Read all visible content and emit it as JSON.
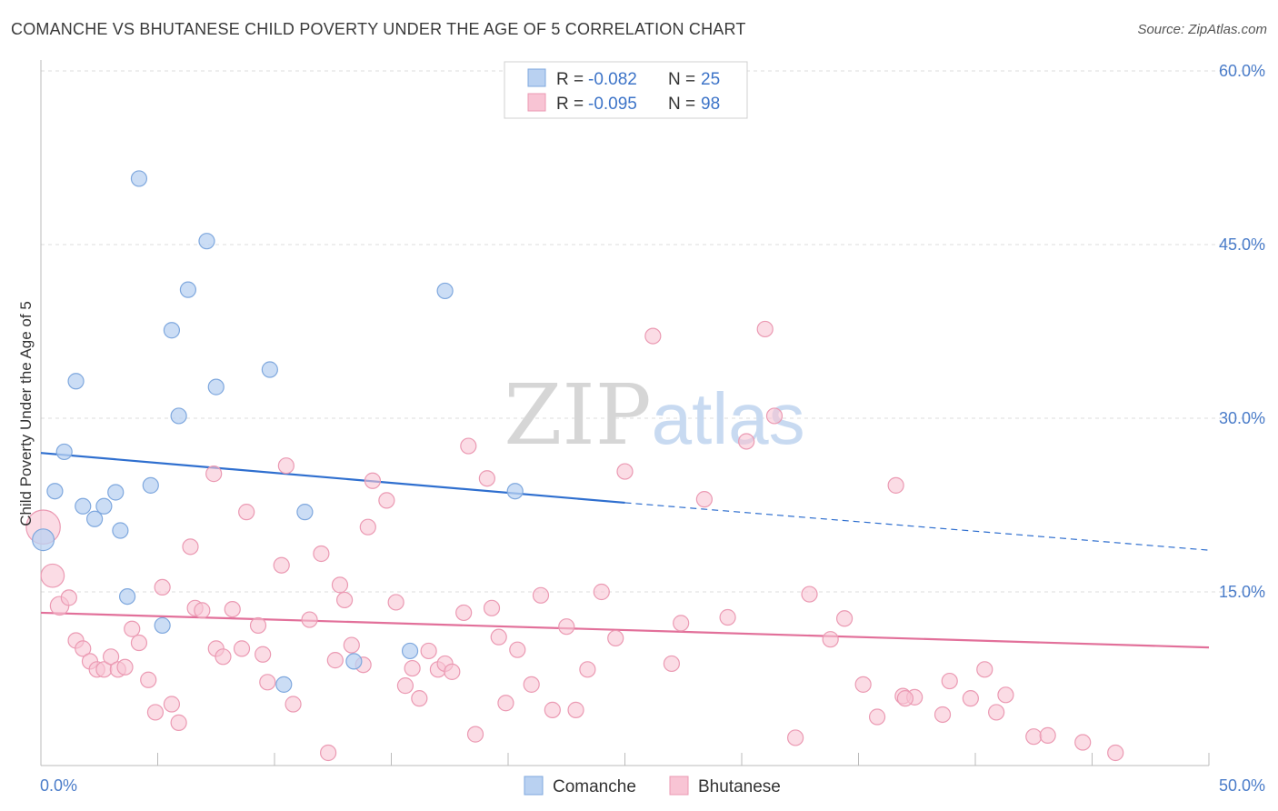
{
  "title": "COMANCHE VS BHUTANESE CHILD POVERTY UNDER THE AGE OF 5 CORRELATION CHART",
  "source": "Source: ZipAtlas.com",
  "watermark": "ZIPatlas",
  "legend": {
    "r_label": "R =",
    "n_label": "N =",
    "items": [
      {
        "name": "Comanche",
        "r": "-0.082",
        "n": "25"
      },
      {
        "name": "Bhutanese",
        "r": "-0.095",
        "n": "98"
      }
    ]
  },
  "colors": {
    "comanche_fill": "#b9d1f1",
    "comanche_stroke": "#7fa8de",
    "comanche_line": "#2f6fcf",
    "bhutanese_fill": "#f8c4d4",
    "bhutanese_stroke": "#eb9ab3",
    "bhutanese_line": "#e2709a",
    "tick_text": "#4a7cc9",
    "grid": "#dddddd"
  },
  "chart_data": {
    "type": "scatter",
    "title": "COMANCHE VS BHUTANESE CHILD POVERTY UNDER THE AGE OF 5 CORRELATION CHART",
    "xlabel": "",
    "ylabel": "Child Poverty Under the Age of 5",
    "xlim": [
      0,
      50
    ],
    "ylim": [
      0,
      60
    ],
    "x_tick_labels": [
      "0.0%",
      "50.0%"
    ],
    "y_tick_labels": [
      "15.0%",
      "30.0%",
      "45.0%",
      "60.0%"
    ],
    "y_tick_values": [
      15,
      30,
      45,
      60
    ],
    "grid": true,
    "legend_position": "top-center",
    "series": [
      {
        "name": "Comanche",
        "points": [
          [
            0.1,
            19.5,
            1.4
          ],
          [
            0.6,
            23.7,
            1
          ],
          [
            1.0,
            27.1,
            1
          ],
          [
            1.5,
            33.2,
            1
          ],
          [
            1.8,
            22.4,
            1
          ],
          [
            2.3,
            21.3,
            1
          ],
          [
            2.7,
            22.4,
            1
          ],
          [
            3.2,
            23.6,
            1
          ],
          [
            3.4,
            20.3,
            1
          ],
          [
            3.7,
            14.6,
            1
          ],
          [
            4.2,
            50.7,
            1
          ],
          [
            4.7,
            24.2,
            1
          ],
          [
            5.2,
            12.1,
            1
          ],
          [
            5.6,
            37.6,
            1
          ],
          [
            5.9,
            30.2,
            1
          ],
          [
            6.3,
            41.1,
            1
          ],
          [
            7.1,
            45.3,
            1
          ],
          [
            7.5,
            32.7,
            1
          ],
          [
            9.8,
            34.2,
            1
          ],
          [
            10.4,
            7.0,
            1
          ],
          [
            11.3,
            21.9,
            1
          ],
          [
            13.4,
            9.0,
            1
          ],
          [
            15.8,
            9.9,
            1
          ],
          [
            17.3,
            41.0,
            1
          ],
          [
            20.3,
            23.7,
            1
          ]
        ],
        "trend": {
          "x": [
            0,
            25
          ],
          "y": [
            27.0,
            22.7
          ]
        },
        "trend_dashed": {
          "x": [
            25,
            50
          ],
          "y": [
            22.7,
            18.6
          ]
        }
      },
      {
        "name": "Bhutanese",
        "points": [
          [
            0.1,
            20.6,
            2.2
          ],
          [
            0.5,
            16.4,
            1.5
          ],
          [
            0.8,
            13.8,
            1.2
          ],
          [
            1.2,
            14.5,
            1
          ],
          [
            1.5,
            10.8,
            1
          ],
          [
            1.8,
            10.1,
            1
          ],
          [
            2.1,
            9.0,
            1
          ],
          [
            2.4,
            8.3,
            1
          ],
          [
            2.7,
            8.3,
            1
          ],
          [
            3.0,
            9.4,
            1
          ],
          [
            3.3,
            8.3,
            1
          ],
          [
            3.6,
            8.5,
            1
          ],
          [
            3.9,
            11.8,
            1
          ],
          [
            4.2,
            10.6,
            1
          ],
          [
            4.6,
            7.4,
            1
          ],
          [
            4.9,
            4.6,
            1
          ],
          [
            5.2,
            15.4,
            1
          ],
          [
            5.6,
            5.3,
            1
          ],
          [
            5.9,
            3.7,
            1
          ],
          [
            6.4,
            18.9,
            1
          ],
          [
            6.6,
            13.6,
            1
          ],
          [
            6.9,
            13.4,
            1
          ],
          [
            7.4,
            25.2,
            1
          ],
          [
            7.5,
            10.1,
            1
          ],
          [
            7.8,
            9.4,
            1
          ],
          [
            8.2,
            13.5,
            1
          ],
          [
            8.6,
            10.1,
            1
          ],
          [
            8.8,
            21.9,
            1
          ],
          [
            9.3,
            12.1,
            1
          ],
          [
            9.5,
            9.6,
            1
          ],
          [
            9.7,
            7.2,
            1
          ],
          [
            10.3,
            17.3,
            1
          ],
          [
            10.5,
            25.9,
            1
          ],
          [
            10.8,
            5.3,
            1
          ],
          [
            11.5,
            12.6,
            1
          ],
          [
            12.0,
            18.3,
            1
          ],
          [
            12.3,
            1.1,
            1
          ],
          [
            12.6,
            9.1,
            1
          ],
          [
            12.8,
            15.6,
            1
          ],
          [
            13.0,
            14.3,
            1
          ],
          [
            13.3,
            10.4,
            1
          ],
          [
            13.8,
            8.7,
            1
          ],
          [
            14.0,
            20.6,
            1
          ],
          [
            14.2,
            24.6,
            1
          ],
          [
            14.8,
            22.9,
            1
          ],
          [
            15.2,
            14.1,
            1
          ],
          [
            15.6,
            6.9,
            1
          ],
          [
            15.9,
            8.4,
            1
          ],
          [
            16.2,
            5.8,
            1
          ],
          [
            16.6,
            9.9,
            1
          ],
          [
            17.0,
            8.3,
            1
          ],
          [
            17.3,
            8.8,
            1
          ],
          [
            17.6,
            8.1,
            1
          ],
          [
            18.1,
            13.2,
            1
          ],
          [
            18.3,
            27.6,
            1
          ],
          [
            18.6,
            2.7,
            1
          ],
          [
            19.1,
            24.8,
            1
          ],
          [
            19.3,
            13.6,
            1
          ],
          [
            19.6,
            11.1,
            1
          ],
          [
            19.9,
            5.4,
            1
          ],
          [
            20.4,
            10.0,
            1
          ],
          [
            21.0,
            7.0,
            1
          ],
          [
            21.4,
            14.7,
            1
          ],
          [
            21.9,
            4.8,
            1
          ],
          [
            22.5,
            12.0,
            1
          ],
          [
            22.9,
            4.8,
            1
          ],
          [
            23.4,
            8.3,
            1
          ],
          [
            24.0,
            15.0,
            1
          ],
          [
            24.6,
            11.0,
            1
          ],
          [
            25.0,
            25.4,
            1
          ],
          [
            26.2,
            37.1,
            1
          ],
          [
            27.0,
            8.8,
            1
          ],
          [
            27.4,
            12.3,
            1
          ],
          [
            28.4,
            23.0,
            1
          ],
          [
            29.4,
            12.8,
            1
          ],
          [
            30.2,
            28.0,
            1
          ],
          [
            31.0,
            37.7,
            1
          ],
          [
            31.4,
            30.2,
            1
          ],
          [
            32.3,
            2.4,
            1
          ],
          [
            32.9,
            14.8,
            1
          ],
          [
            33.8,
            10.9,
            1
          ],
          [
            34.4,
            12.7,
            1
          ],
          [
            35.2,
            7.0,
            1
          ],
          [
            35.8,
            4.2,
            1
          ],
          [
            36.6,
            24.2,
            1
          ],
          [
            36.9,
            6.0,
            1
          ],
          [
            37.4,
            5.9,
            1
          ],
          [
            38.6,
            4.4,
            1
          ],
          [
            38.9,
            7.3,
            1
          ],
          [
            39.8,
            5.8,
            1
          ],
          [
            40.4,
            8.3,
            1
          ],
          [
            40.9,
            4.6,
            1
          ],
          [
            41.3,
            6.1,
            1
          ],
          [
            42.5,
            2.5,
            1
          ],
          [
            43.1,
            2.6,
            1
          ],
          [
            44.6,
            2.0,
            1
          ],
          [
            46.0,
            1.1,
            1
          ],
          [
            37.0,
            5.8,
            1
          ]
        ],
        "trend": {
          "x": [
            0,
            50
          ],
          "y": [
            13.2,
            10.2
          ]
        }
      }
    ]
  }
}
